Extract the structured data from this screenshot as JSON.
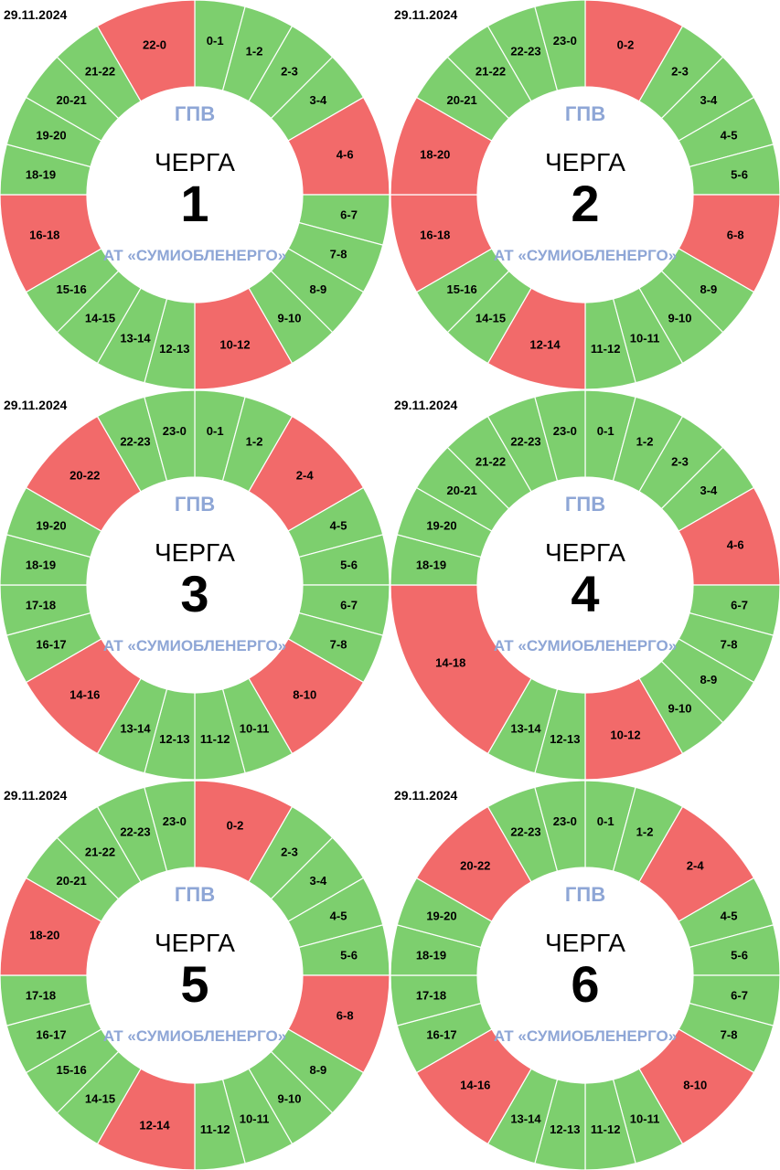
{
  "colors": {
    "on": "#7dcf6e",
    "off": "#f26a6a",
    "text_blue": "#8ea6d6"
  },
  "gpv_label": "ГПВ",
  "queue_word": "ЧЕРГА",
  "org": "АТ «СУМИОБЛЕНЕРГО»",
  "chart_data": [
    {
      "type": "pie",
      "date": "29.11.2024",
      "queue": "1",
      "segments": [
        {
          "label": "0-1",
          "start": 0,
          "end": 1,
          "state": "on"
        },
        {
          "label": "1-2",
          "start": 1,
          "end": 2,
          "state": "on"
        },
        {
          "label": "2-3",
          "start": 2,
          "end": 3,
          "state": "on"
        },
        {
          "label": "3-4",
          "start": 3,
          "end": 4,
          "state": "on"
        },
        {
          "label": "4-6",
          "start": 4,
          "end": 6,
          "state": "off"
        },
        {
          "label": "6-7",
          "start": 6,
          "end": 7,
          "state": "on"
        },
        {
          "label": "7-8",
          "start": 7,
          "end": 8,
          "state": "on"
        },
        {
          "label": "8-9",
          "start": 8,
          "end": 9,
          "state": "on"
        },
        {
          "label": "9-10",
          "start": 9,
          "end": 10,
          "state": "on"
        },
        {
          "label": "10-12",
          "start": 10,
          "end": 12,
          "state": "off"
        },
        {
          "label": "12-13",
          "start": 12,
          "end": 13,
          "state": "on"
        },
        {
          "label": "13-14",
          "start": 13,
          "end": 14,
          "state": "on"
        },
        {
          "label": "14-15",
          "start": 14,
          "end": 15,
          "state": "on"
        },
        {
          "label": "15-16",
          "start": 15,
          "end": 16,
          "state": "on"
        },
        {
          "label": "16-18",
          "start": 16,
          "end": 18,
          "state": "off"
        },
        {
          "label": "18-19",
          "start": 18,
          "end": 19,
          "state": "on"
        },
        {
          "label": "19-20",
          "start": 19,
          "end": 20,
          "state": "on"
        },
        {
          "label": "20-21",
          "start": 20,
          "end": 21,
          "state": "on"
        },
        {
          "label": "21-22",
          "start": 21,
          "end": 22,
          "state": "on"
        },
        {
          "label": "22-0",
          "start": 22,
          "end": 24,
          "state": "off"
        }
      ]
    },
    {
      "type": "pie",
      "date": "29.11.2024",
      "queue": "2",
      "segments": [
        {
          "label": "0-2",
          "start": 0,
          "end": 2,
          "state": "off"
        },
        {
          "label": "2-3",
          "start": 2,
          "end": 3,
          "state": "on"
        },
        {
          "label": "3-4",
          "start": 3,
          "end": 4,
          "state": "on"
        },
        {
          "label": "4-5",
          "start": 4,
          "end": 5,
          "state": "on"
        },
        {
          "label": "5-6",
          "start": 5,
          "end": 6,
          "state": "on"
        },
        {
          "label": "6-8",
          "start": 6,
          "end": 8,
          "state": "off"
        },
        {
          "label": "8-9",
          "start": 8,
          "end": 9,
          "state": "on"
        },
        {
          "label": "9-10",
          "start": 9,
          "end": 10,
          "state": "on"
        },
        {
          "label": "10-11",
          "start": 10,
          "end": 11,
          "state": "on"
        },
        {
          "label": "11-12",
          "start": 11,
          "end": 12,
          "state": "on"
        },
        {
          "label": "12-14",
          "start": 12,
          "end": 14,
          "state": "off"
        },
        {
          "label": "14-15",
          "start": 14,
          "end": 15,
          "state": "on"
        },
        {
          "label": "15-16",
          "start": 15,
          "end": 16,
          "state": "on"
        },
        {
          "label": "16-18",
          "start": 16,
          "end": 18,
          "state": "off"
        },
        {
          "label": "18-20",
          "start": 18,
          "end": 20,
          "state": "off"
        },
        {
          "label": "20-21",
          "start": 20,
          "end": 21,
          "state": "on"
        },
        {
          "label": "21-22",
          "start": 21,
          "end": 22,
          "state": "on"
        },
        {
          "label": "22-23",
          "start": 22,
          "end": 23,
          "state": "on"
        },
        {
          "label": "23-0",
          "start": 23,
          "end": 24,
          "state": "on"
        }
      ]
    },
    {
      "type": "pie",
      "date": "29.11.2024",
      "queue": "3",
      "segments": [
        {
          "label": "0-1",
          "start": 0,
          "end": 1,
          "state": "on"
        },
        {
          "label": "1-2",
          "start": 1,
          "end": 2,
          "state": "on"
        },
        {
          "label": "2-4",
          "start": 2,
          "end": 4,
          "state": "off"
        },
        {
          "label": "4-5",
          "start": 4,
          "end": 5,
          "state": "on"
        },
        {
          "label": "5-6",
          "start": 5,
          "end": 6,
          "state": "on"
        },
        {
          "label": "6-7",
          "start": 6,
          "end": 7,
          "state": "on"
        },
        {
          "label": "7-8",
          "start": 7,
          "end": 8,
          "state": "on"
        },
        {
          "label": "8-10",
          "start": 8,
          "end": 10,
          "state": "off"
        },
        {
          "label": "10-11",
          "start": 10,
          "end": 11,
          "state": "on"
        },
        {
          "label": "11-12",
          "start": 11,
          "end": 12,
          "state": "on"
        },
        {
          "label": "12-13",
          "start": 12,
          "end": 13,
          "state": "on"
        },
        {
          "label": "13-14",
          "start": 13,
          "end": 14,
          "state": "on"
        },
        {
          "label": "14-16",
          "start": 14,
          "end": 16,
          "state": "off"
        },
        {
          "label": "16-17",
          "start": 16,
          "end": 17,
          "state": "on"
        },
        {
          "label": "17-18",
          "start": 17,
          "end": 18,
          "state": "on"
        },
        {
          "label": "18-19",
          "start": 18,
          "end": 19,
          "state": "on"
        },
        {
          "label": "19-20",
          "start": 19,
          "end": 20,
          "state": "on"
        },
        {
          "label": "20-22",
          "start": 20,
          "end": 22,
          "state": "off"
        },
        {
          "label": "22-23",
          "start": 22,
          "end": 23,
          "state": "on"
        },
        {
          "label": "23-0",
          "start": 23,
          "end": 24,
          "state": "on"
        }
      ]
    },
    {
      "type": "pie",
      "date": "29.11.2024",
      "queue": "4",
      "segments": [
        {
          "label": "0-1",
          "start": 0,
          "end": 1,
          "state": "on"
        },
        {
          "label": "1-2",
          "start": 1,
          "end": 2,
          "state": "on"
        },
        {
          "label": "2-3",
          "start": 2,
          "end": 3,
          "state": "on"
        },
        {
          "label": "3-4",
          "start": 3,
          "end": 4,
          "state": "on"
        },
        {
          "label": "4-6",
          "start": 4,
          "end": 6,
          "state": "off"
        },
        {
          "label": "6-7",
          "start": 6,
          "end": 7,
          "state": "on"
        },
        {
          "label": "7-8",
          "start": 7,
          "end": 8,
          "state": "on"
        },
        {
          "label": "8-9",
          "start": 8,
          "end": 9,
          "state": "on"
        },
        {
          "label": "9-10",
          "start": 9,
          "end": 10,
          "state": "on"
        },
        {
          "label": "10-12",
          "start": 10,
          "end": 12,
          "state": "off"
        },
        {
          "label": "12-13",
          "start": 12,
          "end": 13,
          "state": "on"
        },
        {
          "label": "13-14",
          "start": 13,
          "end": 14,
          "state": "on"
        },
        {
          "label": "14-18",
          "start": 14,
          "end": 18,
          "state": "off"
        },
        {
          "label": "18-19",
          "start": 18,
          "end": 19,
          "state": "on"
        },
        {
          "label": "19-20",
          "start": 19,
          "end": 20,
          "state": "on"
        },
        {
          "label": "20-21",
          "start": 20,
          "end": 21,
          "state": "on"
        },
        {
          "label": "21-22",
          "start": 21,
          "end": 22,
          "state": "on"
        },
        {
          "label": "22-23",
          "start": 22,
          "end": 23,
          "state": "on"
        },
        {
          "label": "23-0",
          "start": 23,
          "end": 24,
          "state": "on"
        }
      ]
    },
    {
      "type": "pie",
      "date": "29.11.2024",
      "queue": "5",
      "segments": [
        {
          "label": "0-2",
          "start": 0,
          "end": 2,
          "state": "off"
        },
        {
          "label": "2-3",
          "start": 2,
          "end": 3,
          "state": "on"
        },
        {
          "label": "3-4",
          "start": 3,
          "end": 4,
          "state": "on"
        },
        {
          "label": "4-5",
          "start": 4,
          "end": 5,
          "state": "on"
        },
        {
          "label": "5-6",
          "start": 5,
          "end": 6,
          "state": "on"
        },
        {
          "label": "6-8",
          "start": 6,
          "end": 8,
          "state": "off"
        },
        {
          "label": "8-9",
          "start": 8,
          "end": 9,
          "state": "on"
        },
        {
          "label": "9-10",
          "start": 9,
          "end": 10,
          "state": "on"
        },
        {
          "label": "10-11",
          "start": 10,
          "end": 11,
          "state": "on"
        },
        {
          "label": "11-12",
          "start": 11,
          "end": 12,
          "state": "on"
        },
        {
          "label": "12-14",
          "start": 12,
          "end": 14,
          "state": "off"
        },
        {
          "label": "14-15",
          "start": 14,
          "end": 15,
          "state": "on"
        },
        {
          "label": "15-16",
          "start": 15,
          "end": 16,
          "state": "on"
        },
        {
          "label": "16-17",
          "start": 16,
          "end": 17,
          "state": "on"
        },
        {
          "label": "17-18",
          "start": 17,
          "end": 18,
          "state": "on"
        },
        {
          "label": "18-20",
          "start": 18,
          "end": 20,
          "state": "off"
        },
        {
          "label": "20-21",
          "start": 20,
          "end": 21,
          "state": "on"
        },
        {
          "label": "21-22",
          "start": 21,
          "end": 22,
          "state": "on"
        },
        {
          "label": "22-23",
          "start": 22,
          "end": 23,
          "state": "on"
        },
        {
          "label": "23-0",
          "start": 23,
          "end": 24,
          "state": "on"
        }
      ]
    },
    {
      "type": "pie",
      "date": "29.11.2024",
      "queue": "6",
      "segments": [
        {
          "label": "0-1",
          "start": 0,
          "end": 1,
          "state": "on"
        },
        {
          "label": "1-2",
          "start": 1,
          "end": 2,
          "state": "on"
        },
        {
          "label": "2-4",
          "start": 2,
          "end": 4,
          "state": "off"
        },
        {
          "label": "4-5",
          "start": 4,
          "end": 5,
          "state": "on"
        },
        {
          "label": "5-6",
          "start": 5,
          "end": 6,
          "state": "on"
        },
        {
          "label": "6-7",
          "start": 6,
          "end": 7,
          "state": "on"
        },
        {
          "label": "7-8",
          "start": 7,
          "end": 8,
          "state": "on"
        },
        {
          "label": "8-10",
          "start": 8,
          "end": 10,
          "state": "off"
        },
        {
          "label": "10-11",
          "start": 10,
          "end": 11,
          "state": "on"
        },
        {
          "label": "11-12",
          "start": 11,
          "end": 12,
          "state": "on"
        },
        {
          "label": "12-13",
          "start": 12,
          "end": 13,
          "state": "on"
        },
        {
          "label": "13-14",
          "start": 13,
          "end": 14,
          "state": "on"
        },
        {
          "label": "14-16",
          "start": 14,
          "end": 16,
          "state": "off"
        },
        {
          "label": "16-17",
          "start": 16,
          "end": 17,
          "state": "on"
        },
        {
          "label": "17-18",
          "start": 17,
          "end": 18,
          "state": "on"
        },
        {
          "label": "18-19",
          "start": 18,
          "end": 19,
          "state": "on"
        },
        {
          "label": "19-20",
          "start": 19,
          "end": 20,
          "state": "on"
        },
        {
          "label": "20-22",
          "start": 20,
          "end": 22,
          "state": "off"
        },
        {
          "label": "22-23",
          "start": 22,
          "end": 23,
          "state": "on"
        },
        {
          "label": "23-0",
          "start": 23,
          "end": 24,
          "state": "on"
        }
      ]
    }
  ]
}
